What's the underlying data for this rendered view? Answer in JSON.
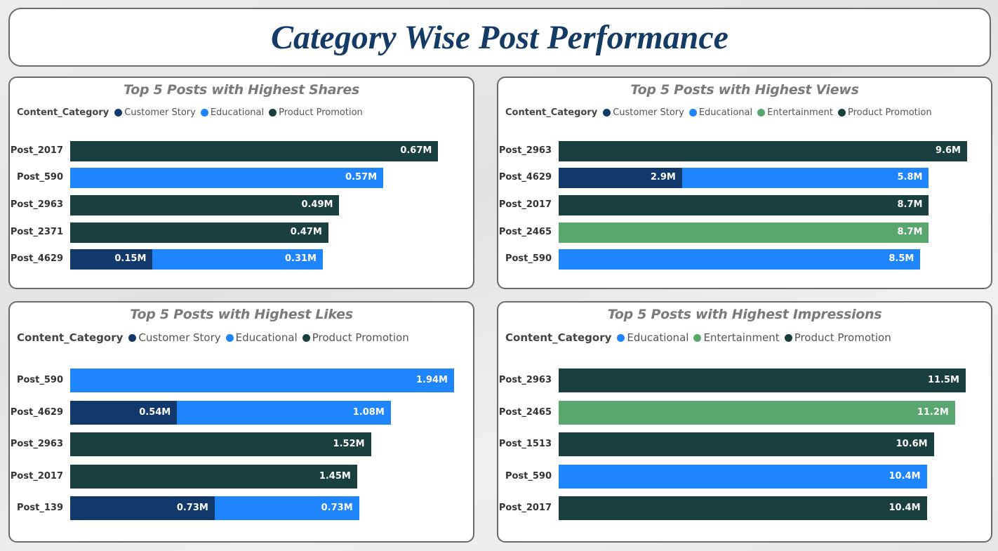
{
  "page": {
    "title": "Category Wise Post Performance"
  },
  "colors": {
    "Customer Story": "#12396b",
    "Educational": "#1f85ff",
    "Entertainment": "#59a66f",
    "Product Promotion": "#193f3e"
  },
  "chart_data": [
    {
      "id": "shares",
      "type": "bar",
      "orientation": "horizontal",
      "stacked": true,
      "title": "Top 5 Posts with Highest Shares",
      "legend_title": "Content_Category",
      "legend": [
        "Customer Story",
        "Educational",
        "Product Promotion"
      ],
      "legend_position": "top-left",
      "grid": false,
      "categories": [
        "Post_2017",
        "Post_590",
        "Post_2963",
        "Post_2371",
        "Post_4629"
      ],
      "series": [
        {
          "name": "Customer Story",
          "values": [
            null,
            null,
            null,
            null,
            0.15
          ],
          "labels": [
            "",
            "",
            "",
            "",
            "0.15M"
          ]
        },
        {
          "name": "Educational",
          "values": [
            null,
            0.57,
            null,
            null,
            0.31
          ],
          "labels": [
            "",
            "0.57M",
            "",
            "",
            "0.31M"
          ]
        },
        {
          "name": "Product Promotion",
          "values": [
            0.67,
            null,
            0.49,
            0.47,
            null
          ],
          "labels": [
            "0.67M",
            "",
            "0.49M",
            "0.47M",
            ""
          ]
        }
      ],
      "xlim": [
        0,
        0.69
      ]
    },
    {
      "id": "views",
      "type": "bar",
      "orientation": "horizontal",
      "stacked": true,
      "title": "Top 5 Posts with Highest Views",
      "legend_title": "Content_Category",
      "legend": [
        "Customer Story",
        "Educational",
        "Entertainment",
        "Product Promotion"
      ],
      "legend_position": "top-left",
      "grid": false,
      "categories": [
        "Post_2963",
        "Post_4629",
        "Post_2017",
        "Post_2465",
        "Post_590"
      ],
      "series": [
        {
          "name": "Customer Story",
          "values": [
            null,
            2.9,
            null,
            null,
            null
          ],
          "labels": [
            "",
            "2.9M",
            "",
            "",
            ""
          ]
        },
        {
          "name": "Educational",
          "values": [
            null,
            5.8,
            null,
            null,
            8.5
          ],
          "labels": [
            "",
            "5.8M",
            "",
            "",
            "8.5M"
          ]
        },
        {
          "name": "Entertainment",
          "values": [
            null,
            null,
            null,
            8.7,
            null
          ],
          "labels": [
            "",
            "",
            "",
            "8.7M",
            ""
          ]
        },
        {
          "name": "Product Promotion",
          "values": [
            9.6,
            null,
            8.7,
            null,
            null
          ],
          "labels": [
            "9.6M",
            "",
            "8.7M",
            "",
            ""
          ]
        }
      ],
      "xlim": [
        0,
        9.6
      ]
    },
    {
      "id": "likes",
      "type": "bar",
      "orientation": "horizontal",
      "stacked": true,
      "title": "Top 5 Posts with Highest Likes",
      "legend_title": "Content_Category",
      "legend": [
        "Customer Story",
        "Educational",
        "Product Promotion"
      ],
      "legend_position": "top-left",
      "grid": false,
      "categories": [
        "Post_590",
        "Post_4629",
        "Post_2963",
        "Post_2017",
        "Post_139"
      ],
      "series": [
        {
          "name": "Customer Story",
          "values": [
            null,
            0.54,
            null,
            null,
            0.73
          ],
          "labels": [
            "",
            "0.54M",
            "",
            "",
            "0.73M"
          ]
        },
        {
          "name": "Educational",
          "values": [
            1.94,
            1.08,
            null,
            null,
            0.73
          ],
          "labels": [
            "1.94M",
            "1.08M",
            "",
            "",
            "0.73M"
          ]
        },
        {
          "name": "Product Promotion",
          "values": [
            null,
            null,
            1.52,
            1.45,
            null
          ],
          "labels": [
            "",
            "",
            "1.52M",
            "1.45M",
            ""
          ]
        }
      ],
      "xlim": [
        0,
        1.94
      ]
    },
    {
      "id": "impressions",
      "type": "bar",
      "orientation": "horizontal",
      "stacked": true,
      "title": "Top 5 Posts with Highest Impressions",
      "legend_title": "Content_Category",
      "legend": [
        "Educational",
        "Entertainment",
        "Product Promotion"
      ],
      "legend_position": "top-left",
      "grid": false,
      "categories": [
        "Post_2963",
        "Post_2465",
        "Post_1513",
        "Post_590",
        "Post_2017"
      ],
      "series": [
        {
          "name": "Educational",
          "values": [
            null,
            null,
            null,
            10.4,
            null
          ],
          "labels": [
            "",
            "",
            "",
            "10.4M",
            ""
          ]
        },
        {
          "name": "Entertainment",
          "values": [
            null,
            11.2,
            null,
            null,
            null
          ],
          "labels": [
            "",
            "11.2M",
            "",
            "",
            ""
          ]
        },
        {
          "name": "Product Promotion",
          "values": [
            11.5,
            null,
            10.6,
            null,
            10.4
          ],
          "labels": [
            "11.5M",
            "",
            "10.6M",
            "",
            "10.4M"
          ]
        }
      ],
      "xlim": [
        0,
        11.5
      ]
    }
  ]
}
